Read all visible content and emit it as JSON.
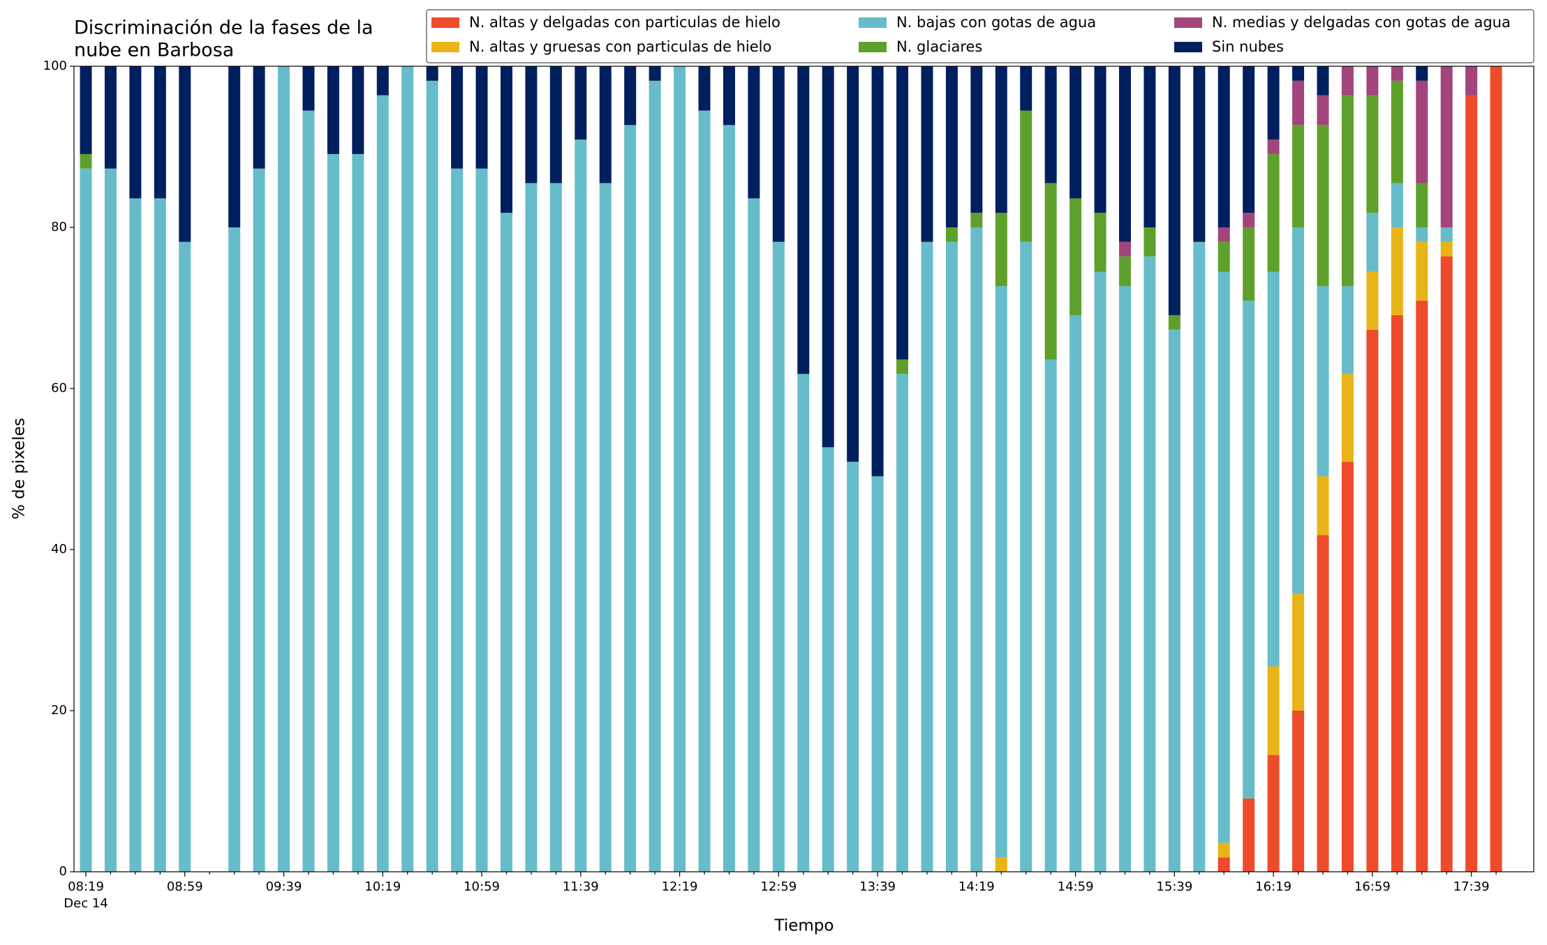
{
  "chart_data": {
    "type": "stacked_bar",
    "title": [
      "Discriminación de la fases de la",
      "nube en Barbosa"
    ],
    "x_label": "Tiempo",
    "y_label": "% de pixeles",
    "x_sublabel": "Dec 14",
    "categories": [
      "08:19",
      null,
      null,
      null,
      "08:59",
      null,
      null,
      null,
      "09:39",
      null,
      null,
      null,
      "10:19",
      null,
      null,
      null,
      "10:59",
      null,
      null,
      null,
      "11:39",
      null,
      null,
      null,
      "12:19",
      null,
      null,
      null,
      "12:59",
      null,
      null,
      null,
      "13:39",
      null,
      null,
      null,
      "14:19",
      null,
      null,
      null,
      "14:59",
      null,
      null,
      null,
      "15:39",
      null,
      null,
      null,
      "16:19",
      null,
      null,
      null,
      "16:59",
      null,
      null,
      null,
      "17:39",
      null
    ],
    "ylim": [
      0,
      100
    ],
    "yticks": [
      0,
      20,
      40,
      60,
      80,
      100
    ],
    "legend": "upper right",
    "series": [
      {
        "name": "N. altas y delgadas con particulas de hielo",
        "color": "#ee4b2b",
        "values": [
          0,
          0,
          0,
          0,
          0,
          null,
          0,
          0,
          0,
          0,
          0,
          0,
          0,
          0,
          0,
          0,
          0,
          0,
          0,
          0,
          0,
          0,
          0,
          0,
          0,
          0,
          0,
          0,
          0,
          0,
          0,
          0,
          0,
          0,
          0,
          0,
          0,
          0,
          0,
          0,
          0,
          0,
          0,
          0,
          0,
          0,
          1.8,
          9.1,
          14.5,
          20,
          41.8,
          50.9,
          67.3,
          69.1,
          70.9,
          76.4,
          96.4,
          100
        ]
      },
      {
        "name": "N. altas y gruesas con particulas de hielo",
        "color": "#e8b417",
        "values": [
          0,
          0,
          0,
          0,
          0,
          null,
          0,
          0,
          0,
          0,
          0,
          0,
          0,
          0,
          0,
          0,
          0,
          0,
          0,
          0,
          0,
          0,
          0,
          0,
          0,
          0,
          0,
          0,
          0,
          0,
          0,
          0,
          0,
          0,
          0,
          0,
          0,
          1.8,
          0,
          0,
          0,
          0,
          0,
          0,
          0,
          0,
          1.8,
          0,
          11,
          14.5,
          7.3,
          10.9,
          7.2,
          10.9,
          7.3,
          1.8,
          0,
          0
        ]
      },
      {
        "name": "N. bajas con gotas de agua",
        "color": "#66bdc9",
        "values": [
          87.3,
          87.3,
          83.6,
          83.6,
          78.2,
          null,
          80,
          87.3,
          100,
          94.5,
          89.1,
          89.1,
          96.4,
          100,
          98.2,
          87.3,
          87.3,
          81.8,
          85.5,
          85.5,
          90.9,
          85.5,
          92.7,
          98.2,
          100,
          94.5,
          92.7,
          83.6,
          78.2,
          61.8,
          52.7,
          50.9,
          49.1,
          61.8,
          78.2,
          78.2,
          80,
          70.9,
          78.2,
          63.6,
          69.1,
          74.5,
          72.7,
          76.4,
          67.3,
          78.2,
          70.9,
          61.8,
          49,
          45.5,
          23.6,
          10.9,
          7.3,
          5.5,
          1.8,
          1.8,
          0,
          0
        ]
      },
      {
        "name": "N. glaciares",
        "color": "#5ea02c",
        "values": [
          1.8,
          0,
          0,
          0,
          0,
          null,
          0,
          0,
          0,
          0,
          0,
          0,
          0,
          0,
          0,
          0,
          0,
          0,
          0,
          0,
          0,
          0,
          0,
          0,
          0,
          0,
          0,
          0,
          0,
          0,
          0,
          0,
          0,
          1.8,
          0,
          1.8,
          1.8,
          9.1,
          16.3,
          21.9,
          14.5,
          7.3,
          3.7,
          3.6,
          1.8,
          0,
          3.7,
          9.1,
          14.6,
          12.7,
          20,
          23.7,
          14.6,
          12.7,
          5.5,
          0,
          0,
          0
        ]
      },
      {
        "name": "N. medias y delgadas con gotas de agua",
        "color": "#a1457a",
        "values": [
          0,
          0,
          0,
          0,
          0,
          null,
          0,
          0,
          0,
          0,
          0,
          0,
          0,
          0,
          0,
          0,
          0,
          0,
          0,
          0,
          0,
          0,
          0,
          0,
          0,
          0,
          0,
          0,
          0,
          0,
          0,
          0,
          0,
          0,
          0,
          0,
          0,
          0,
          0,
          0,
          0,
          0,
          1.8,
          0,
          0,
          0,
          1.8,
          1.8,
          1.8,
          5.5,
          3.7,
          3.6,
          3.6,
          1.8,
          12.7,
          20,
          3.6,
          0
        ]
      },
      {
        "name": "Sin nubes",
        "color": "#001f5e",
        "values": [
          10.9,
          12.7,
          16.4,
          16.4,
          21.8,
          null,
          20,
          12.7,
          0,
          5.5,
          10.9,
          10.9,
          3.6,
          0,
          1.8,
          12.7,
          12.7,
          18.2,
          14.5,
          14.5,
          9.1,
          14.5,
          7.3,
          1.8,
          0,
          5.5,
          7.3,
          16.4,
          21.8,
          38.2,
          47.3,
          49.1,
          50.9,
          36.4,
          21.8,
          20,
          18.2,
          18.2,
          5.5,
          14.5,
          16.4,
          18.2,
          21.8,
          20,
          30.9,
          21.8,
          20,
          18.2,
          9.1,
          1.8,
          3.6,
          0,
          0,
          0,
          1.8,
          0,
          0,
          0
        ]
      }
    ]
  }
}
